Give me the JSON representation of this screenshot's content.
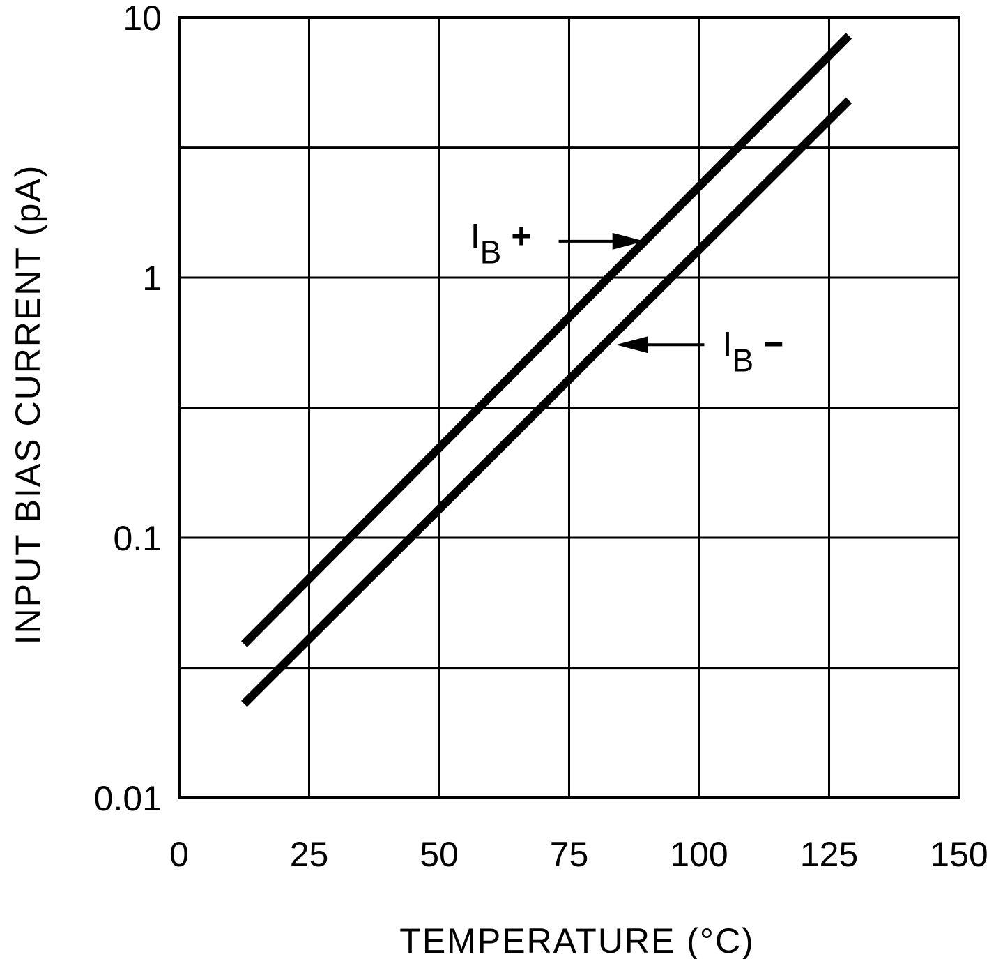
{
  "chart_data": {
    "type": "line",
    "title": "",
    "xlabel": "TEMPERATURE (°C)",
    "ylabel": "INPUT BIAS CURRENT (pA)",
    "xlim": [
      0,
      150
    ],
    "ylim": [
      0.01,
      10
    ],
    "yscale": "log",
    "grid": true,
    "x_ticks": [
      0,
      25,
      50,
      75,
      100,
      125,
      150
    ],
    "x_tick_labels": [
      "0",
      "25",
      "50",
      "75",
      "100",
      "125",
      "150"
    ],
    "y_ticks": [
      0.01,
      0.1,
      1,
      10
    ],
    "y_tick_labels": [
      "0.01",
      "0.1",
      "1",
      "10"
    ],
    "y_minor_grid": [
      0.0316,
      0.316,
      3.16
    ],
    "series": [
      {
        "name": "IB +",
        "x": [
          12.5,
          128.8
        ],
        "y": [
          0.039,
          8.5
        ]
      },
      {
        "name": "IB −",
        "x": [
          12.5,
          128.8
        ],
        "y": [
          0.023,
          4.8
        ]
      }
    ],
    "annotations": [
      {
        "main": "I",
        "sub": "B",
        "sign": "+",
        "target_series": 0,
        "arrow_from": [
          73,
          1.38
        ],
        "arrow_to": [
          89.5,
          1.38
        ],
        "text_at": [
          56,
          1.3
        ]
      },
      {
        "name": "",
        "main": "I",
        "sub": "B",
        "sign": "−",
        "target_series": 1,
        "arrow_from": [
          101,
          0.552
        ],
        "arrow_to": [
          84,
          0.552
        ],
        "text_at": [
          104.5,
          0.5
        ]
      }
    ]
  }
}
